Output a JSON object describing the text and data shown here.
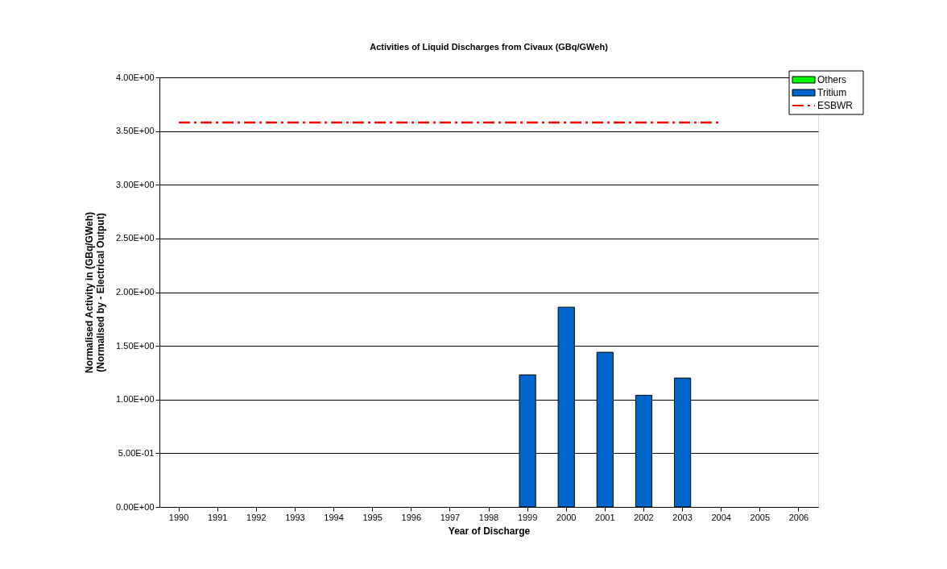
{
  "chart_data": {
    "type": "bar",
    "title": "Activities of Liquid Discharges from Civaux (GBq/GWeh)",
    "xlabel": "Year of Discharge",
    "ylabel": "Normalised Activity in (GBq/GWeh)\n(Normalised by - Electrical Output)",
    "categories": [
      "1990",
      "1991",
      "1992",
      "1993",
      "1994",
      "1995",
      "1996",
      "1997",
      "1998",
      "1999",
      "2000",
      "2001",
      "2002",
      "2003",
      "2004",
      "2005",
      "2006"
    ],
    "series": [
      {
        "name": "Others",
        "color": "#00ff00",
        "values": [
          null,
          null,
          null,
          null,
          null,
          null,
          null,
          null,
          null,
          null,
          null,
          null,
          null,
          null,
          null,
          null,
          null
        ]
      },
      {
        "name": "Tritium",
        "color": "#0066cc",
        "values": [
          null,
          null,
          null,
          null,
          null,
          null,
          null,
          null,
          null,
          1.23,
          1.86,
          1.44,
          1.04,
          1.2,
          null,
          null,
          null
        ]
      },
      {
        "name": "ESBWR",
        "type": "line",
        "color": "#ff0000",
        "line_style": "dashed",
        "values": [
          3.58,
          3.58,
          3.58,
          3.58,
          3.58,
          3.58,
          3.58,
          3.58,
          3.58,
          3.58,
          3.58,
          3.58,
          3.58,
          3.58,
          3.58,
          null,
          null
        ]
      }
    ],
    "ylim": [
      0,
      4
    ],
    "yticks": [
      {
        "value": 0,
        "label": "0.00E+00"
      },
      {
        "value": 0.5,
        "label": "5.00E-01"
      },
      {
        "value": 1,
        "label": "1.00E+00"
      },
      {
        "value": 1.5,
        "label": "1.50E+00"
      },
      {
        "value": 2,
        "label": "2.00E+00"
      },
      {
        "value": 2.5,
        "label": "2.50E+00"
      },
      {
        "value": 3,
        "label": "3.00E+00"
      },
      {
        "value": 3.5,
        "label": "3.50E+00"
      },
      {
        "value": 4,
        "label": "4.00E+00"
      }
    ],
    "grid": "y",
    "legend": "top right"
  }
}
